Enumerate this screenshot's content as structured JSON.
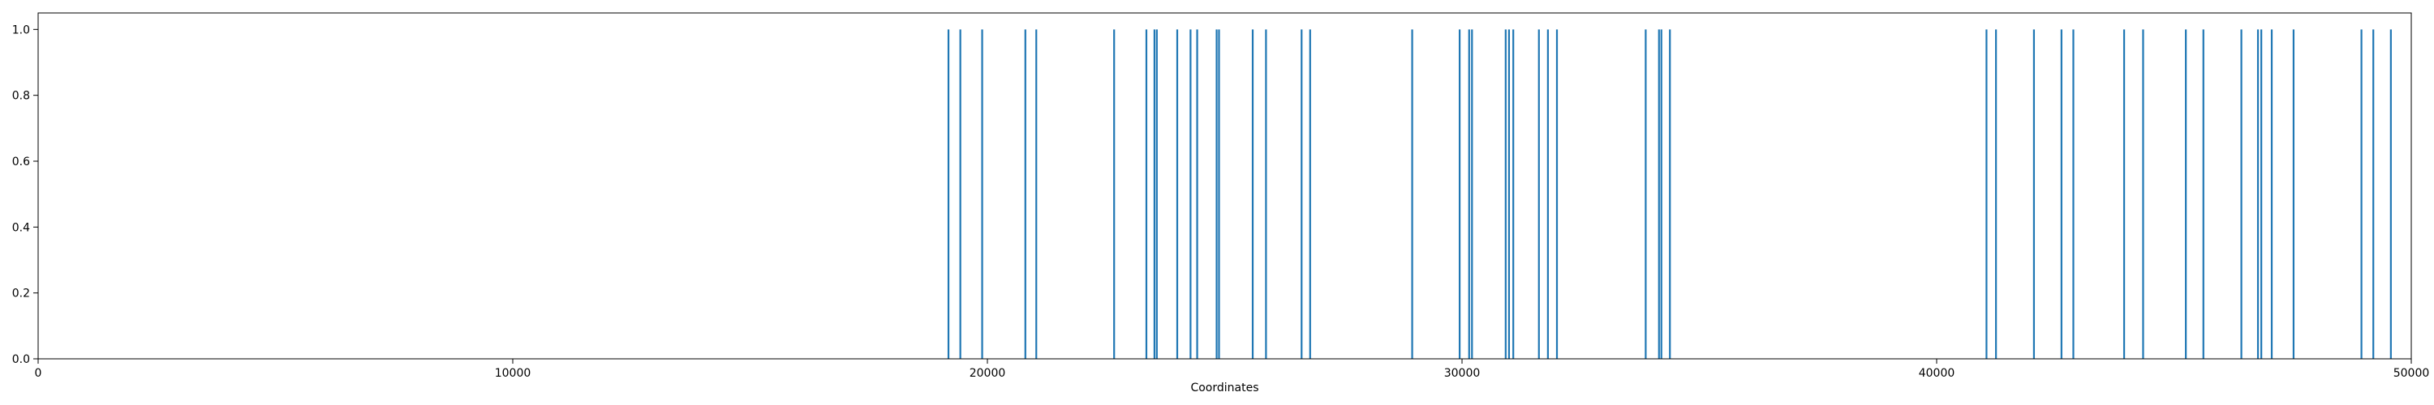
{
  "chart_data": {
    "type": "bar",
    "xlabel": "Coordinates",
    "ylabel": "",
    "xlim": [
      0,
      50000
    ],
    "ylim": [
      0,
      1.05
    ],
    "x_ticks": [
      0,
      10000,
      20000,
      30000,
      40000,
      50000
    ],
    "x_tick_labels": [
      "0",
      "10000",
      "20000",
      "30000",
      "40000",
      "50000"
    ],
    "y_ticks": [
      0.0,
      0.2,
      0.4,
      0.6,
      0.8,
      1.0
    ],
    "y_tick_labels": [
      "0.0",
      "0.2",
      "0.4",
      "0.6",
      "0.8",
      "1.0"
    ],
    "grid": false,
    "legend": "none",
    "bar_color": "#1f77b4",
    "x": [
      19180,
      19430,
      19890,
      20800,
      21030,
      22670,
      23350,
      23520,
      23570,
      24000,
      24280,
      24420,
      24830,
      24880,
      25590,
      25870,
      26620,
      26800,
      28950,
      29950,
      30150,
      30210,
      30920,
      30990,
      31080,
      31620,
      31810,
      32000,
      33870,
      34150,
      34200,
      34380,
      41050,
      41250,
      42050,
      42630,
      42880,
      43950,
      44350,
      45250,
      45620,
      46420,
      46770,
      46840,
      47060,
      47520,
      48950,
      49200,
      49570
    ],
    "values": [
      1,
      1,
      1,
      1,
      1,
      1,
      1,
      1,
      1,
      1,
      1,
      1,
      1,
      1,
      1,
      1,
      1,
      1,
      1,
      1,
      1,
      1,
      1,
      1,
      1,
      1,
      1,
      1,
      1,
      1,
      1,
      1,
      1,
      1,
      1,
      1,
      1,
      1,
      1,
      1,
      1,
      1,
      1,
      1,
      1,
      1,
      1,
      1,
      1
    ]
  }
}
